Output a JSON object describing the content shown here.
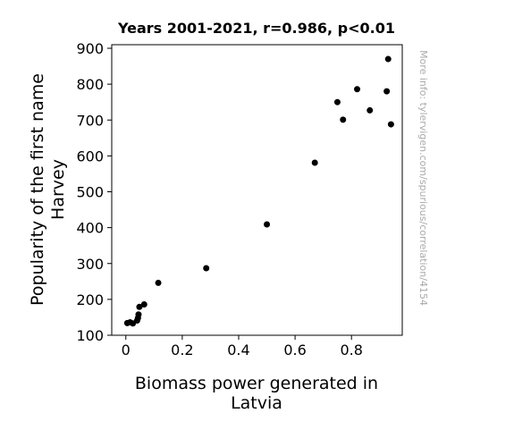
{
  "chart_data": {
    "type": "scatter",
    "title": "Years 2001-2021, r=0.986, p<0.01",
    "xlabel_lines": [
      "Biomass power generated in",
      "Latvia"
    ],
    "ylabel_lines": [
      "Popularity of the first name",
      "Harvey"
    ],
    "watermark": "More info: tylervigen.com/spurious/correlation/4154",
    "xlim": [
      -0.05,
      0.98
    ],
    "ylim": [
      100,
      910
    ],
    "xticks": [
      {
        "value": 0.0,
        "label": "0"
      },
      {
        "value": 0.2,
        "label": "0.2"
      },
      {
        "value": 0.4,
        "label": "0.4"
      },
      {
        "value": 0.6,
        "label": "0.6"
      },
      {
        "value": 0.8,
        "label": "0.8"
      }
    ],
    "yticks": [
      {
        "value": 100,
        "label": "100"
      },
      {
        "value": 200,
        "label": "200"
      },
      {
        "value": 300,
        "label": "300"
      },
      {
        "value": 400,
        "label": "400"
      },
      {
        "value": 500,
        "label": "500"
      },
      {
        "value": 600,
        "label": "600"
      },
      {
        "value": 700,
        "label": "700"
      },
      {
        "value": 800,
        "label": "800"
      },
      {
        "value": 900,
        "label": "900"
      }
    ],
    "grid": false,
    "marker_color": "#000000",
    "points": [
      {
        "x": 0.005,
        "y": 134
      },
      {
        "x": 0.015,
        "y": 136
      },
      {
        "x": 0.025,
        "y": 133
      },
      {
        "x": 0.04,
        "y": 141
      },
      {
        "x": 0.043,
        "y": 148
      },
      {
        "x": 0.045,
        "y": 158
      },
      {
        "x": 0.048,
        "y": 179
      },
      {
        "x": 0.065,
        "y": 186
      },
      {
        "x": 0.115,
        "y": 246
      },
      {
        "x": 0.285,
        "y": 287
      },
      {
        "x": 0.5,
        "y": 409
      },
      {
        "x": 0.67,
        "y": 581
      },
      {
        "x": 0.75,
        "y": 750
      },
      {
        "x": 0.77,
        "y": 701
      },
      {
        "x": 0.82,
        "y": 786
      },
      {
        "x": 0.865,
        "y": 727
      },
      {
        "x": 0.925,
        "y": 780
      },
      {
        "x": 0.93,
        "y": 870
      },
      {
        "x": 0.94,
        "y": 688
      }
    ]
  }
}
